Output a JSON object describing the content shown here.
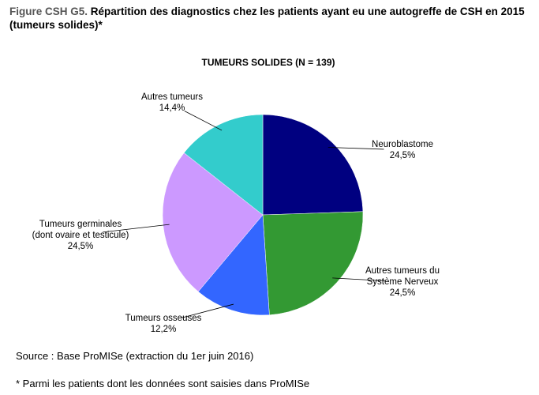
{
  "figure_label": "Figure CSH G5.",
  "title": "Répartition des diagnostics chez les patients ayant eu une autogreffe de CSH en 2015 (tumeurs solides)*",
  "chart_data": {
    "type": "pie",
    "title": "TUMEURS SOLIDES (N = 139)",
    "categories": [
      "Neuroblastome",
      "Autres tumeurs du\nSystème Nerveux",
      "Tumeurs osseuses",
      "Tumeurs germinales\n(dont ovaire et testicule)",
      "Autres tumeurs"
    ],
    "values": [
      24.5,
      24.5,
      12.2,
      24.5,
      14.4
    ],
    "value_labels": [
      "24,5%",
      "24,5%",
      "12,2%",
      "24,5%",
      "14,4%"
    ],
    "colors": [
      "#000080",
      "#339933",
      "#3366ff",
      "#cc99ff",
      "#33cccc"
    ]
  },
  "source": "Source : Base ProMISe (extraction du 1er juin 2016)",
  "note": "* Parmi les patients dont les données sont saisies dans ProMISe"
}
